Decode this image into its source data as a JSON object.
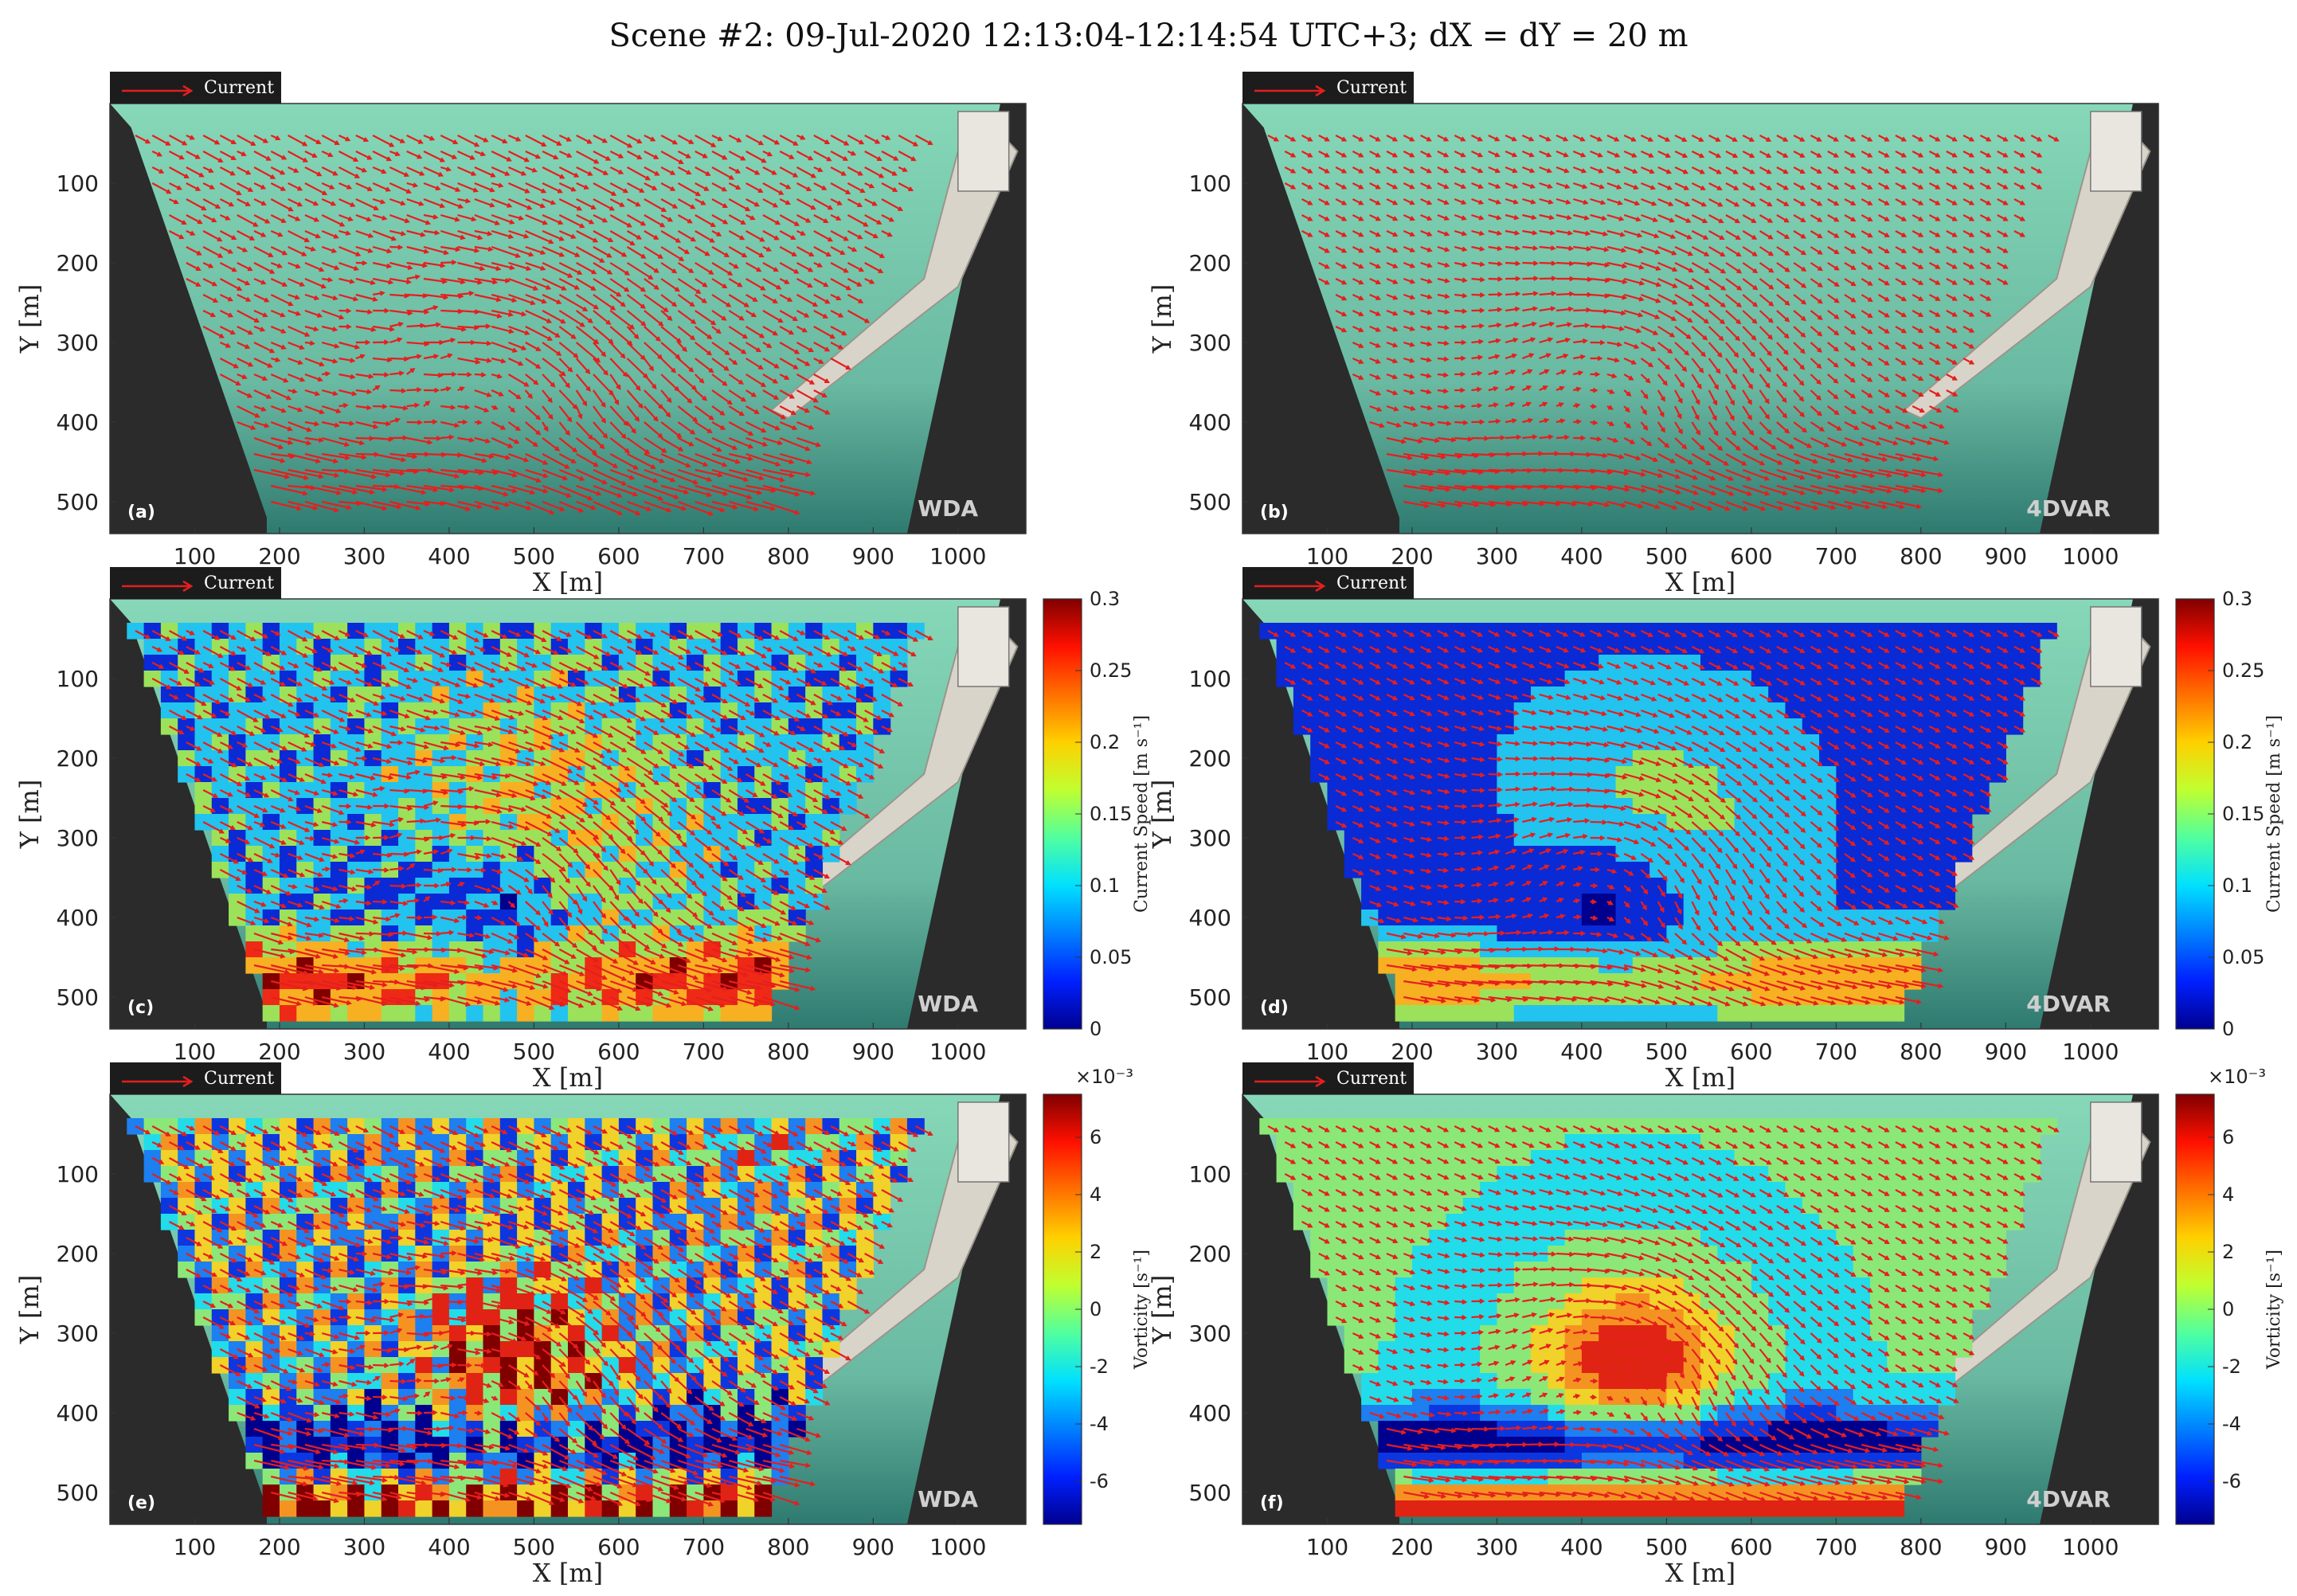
{
  "figure": {
    "title": "Scene #2: 09-Jul-2020 12:13:04-12:14:54 UTC+3; dX = dY = 20 m"
  },
  "legend": {
    "label": "Current"
  },
  "colors": {
    "arrow": "#e61e1e",
    "land": "#2b2b2b",
    "water_light": "#7fcfb0",
    "water_dark": "#3f8f7e"
  },
  "chart_data": [
    {
      "id": "a",
      "type": "quiver",
      "panel_label": "(a)",
      "method": "WDA",
      "xlabel": "X [m]",
      "ylabel": "Y [m]",
      "xticks": [
        "100",
        "200",
        "300",
        "400",
        "500",
        "600",
        "700",
        "800",
        "900",
        "1000"
      ],
      "yticks": [
        "100",
        "200",
        "300",
        "400",
        "500"
      ],
      "xlim": [
        0,
        1080
      ],
      "ylim": [
        0,
        540
      ],
      "field": "current",
      "colorbar": null
    },
    {
      "id": "b",
      "type": "quiver",
      "panel_label": "(b)",
      "method": "4DVAR",
      "xlabel": "X [m]",
      "ylabel": "Y [m]",
      "xticks": [
        "100",
        "200",
        "300",
        "400",
        "500",
        "600",
        "700",
        "800",
        "900",
        "1000"
      ],
      "yticks": [
        "100",
        "200",
        "300",
        "400",
        "500"
      ],
      "xlim": [
        0,
        1080
      ],
      "ylim": [
        0,
        540
      ],
      "field": "current",
      "colorbar": null
    },
    {
      "id": "c",
      "type": "heatmap",
      "panel_label": "(c)",
      "method": "WDA",
      "xlabel": "X [m]",
      "ylabel": "Y [m]",
      "xticks": [
        "100",
        "200",
        "300",
        "400",
        "500",
        "600",
        "700",
        "800",
        "900",
        "1000"
      ],
      "yticks": [
        "100",
        "200",
        "300",
        "400",
        "500"
      ],
      "xlim": [
        0,
        1080
      ],
      "ylim": [
        0,
        540
      ],
      "field": "speed",
      "colorbar": {
        "label": "Current Speed [m s⁻¹]",
        "ticks": [
          "0.3",
          "0.25",
          "0.2",
          "0.15",
          "0.1",
          "0.05",
          "0"
        ],
        "range": [
          0,
          0.3
        ],
        "exponent": ""
      }
    },
    {
      "id": "d",
      "type": "heatmap",
      "panel_label": "(d)",
      "method": "4DVAR",
      "xlabel": "X [m]",
      "ylabel": "Y [m]",
      "xticks": [
        "100",
        "200",
        "300",
        "400",
        "500",
        "600",
        "700",
        "800",
        "900",
        "1000"
      ],
      "yticks": [
        "100",
        "200",
        "300",
        "400",
        "500"
      ],
      "xlim": [
        0,
        1080
      ],
      "ylim": [
        0,
        540
      ],
      "field": "speed",
      "colorbar": {
        "label": "Current Speed [m s⁻¹]",
        "ticks": [
          "0.3",
          "0.25",
          "0.2",
          "0.15",
          "0.1",
          "0.05",
          "0"
        ],
        "range": [
          0,
          0.3
        ],
        "exponent": ""
      }
    },
    {
      "id": "e",
      "type": "heatmap",
      "panel_label": "(e)",
      "method": "WDA",
      "xlabel": "X [m]",
      "ylabel": "Y [m]",
      "xticks": [
        "100",
        "200",
        "300",
        "400",
        "500",
        "600",
        "700",
        "800",
        "900",
        "1000"
      ],
      "yticks": [
        "100",
        "200",
        "300",
        "400",
        "500"
      ],
      "xlim": [
        0,
        1080
      ],
      "ylim": [
        0,
        540
      ],
      "field": "vorticity",
      "colorbar": {
        "label": "Vorticity [s⁻¹]",
        "ticks": [
          "6",
          "4",
          "2",
          "0",
          "-2",
          "-4",
          "-6"
        ],
        "range": [
          -7.5,
          7.5
        ],
        "exponent": "×10⁻³"
      }
    },
    {
      "id": "f",
      "type": "heatmap",
      "panel_label": "(f)",
      "method": "4DVAR",
      "xlabel": "X [m]",
      "ylabel": "Y [m]",
      "xticks": [
        "100",
        "200",
        "300",
        "400",
        "500",
        "600",
        "700",
        "800",
        "900",
        "1000"
      ],
      "yticks": [
        "100",
        "200",
        "300",
        "400",
        "500"
      ],
      "xlim": [
        0,
        1080
      ],
      "ylim": [
        0,
        540
      ],
      "field": "vorticity",
      "colorbar": {
        "label": "Vorticity [s⁻¹]",
        "ticks": [
          "6",
          "4",
          "2",
          "0",
          "-2",
          "-4",
          "-6"
        ],
        "range": [
          -7.5,
          7.5
        ],
        "exponent": "×10⁻³"
      }
    }
  ]
}
